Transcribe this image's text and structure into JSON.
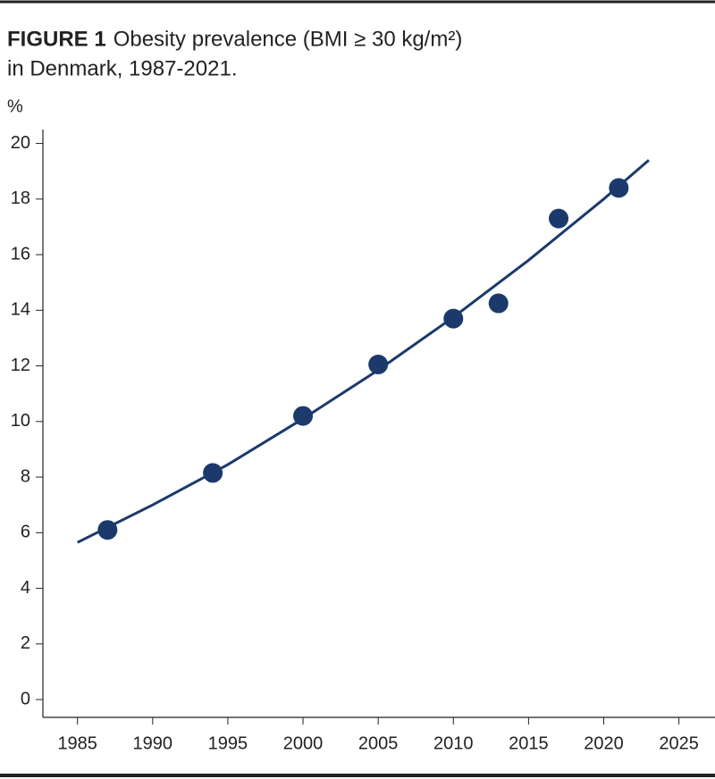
{
  "chart_data": {
    "type": "scatter",
    "label": "FIGURE 1",
    "title": [
      "Obesity prevalence (BMI ≥ 30 kg/m²)",
      "in Denmark, 1987-2021."
    ],
    "y_label": "%",
    "color": "#1b3a6b",
    "x": [
      1987,
      1994,
      2000,
      2005,
      2010,
      2013,
      2017,
      2021
    ],
    "values": [
      6.1,
      8.15,
      10.2,
      12.05,
      13.7,
      14.25,
      17.3,
      18.4
    ],
    "trend": {
      "x": [
        1985,
        1990,
        1995,
        2000,
        2005,
        2010,
        2015,
        2020,
        2023
      ],
      "values": [
        5.65,
        7.0,
        8.45,
        10.1,
        11.85,
        13.75,
        15.8,
        18.0,
        19.4
      ]
    },
    "xlim": [
      1982.7,
      2027.4
    ],
    "ylim": [
      -0.64,
      20.5
    ],
    "xticks": [
      1985,
      1990,
      1995,
      2000,
      2005,
      2010,
      2015,
      2020,
      2025
    ],
    "yticks": [
      0,
      2,
      4,
      6,
      8,
      10,
      12,
      14,
      16,
      18,
      20
    ]
  }
}
